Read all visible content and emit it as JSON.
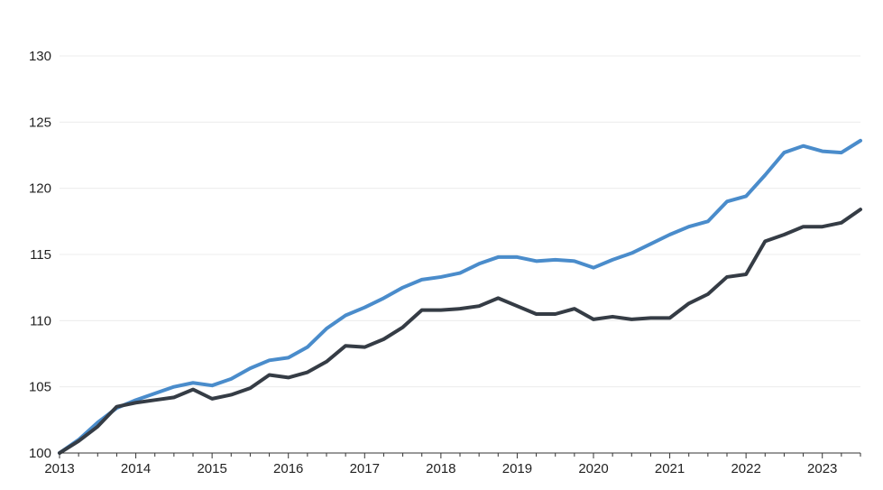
{
  "chart_data": {
    "type": "line",
    "title": "",
    "xlabel": "",
    "ylabel": "",
    "x_ticks": [
      "2013",
      "2014",
      "2015",
      "2016",
      "2017",
      "2018",
      "2019",
      "2020",
      "2021",
      "2022",
      "2023"
    ],
    "y_ticks": [
      100,
      105,
      110,
      115,
      120,
      125,
      130
    ],
    "xlim": [
      2013.0,
      2023.5
    ],
    "ylim": [
      100,
      130
    ],
    "grid": "horizontal",
    "legend": "none",
    "x": [
      2013.0,
      2013.25,
      2013.5,
      2013.75,
      2014.0,
      2014.25,
      2014.5,
      2014.75,
      2015.0,
      2015.25,
      2015.5,
      2015.75,
      2016.0,
      2016.25,
      2016.5,
      2016.75,
      2017.0,
      2017.25,
      2017.5,
      2017.75,
      2018.0,
      2018.25,
      2018.5,
      2018.75,
      2019.0,
      2019.25,
      2019.5,
      2019.75,
      2020.0,
      2020.25,
      2020.5,
      2020.75,
      2021.0,
      2021.25,
      2021.5,
      2021.75,
      2022.0,
      2022.25,
      2022.5,
      2022.75,
      2023.0,
      2023.25,
      2023.5
    ],
    "series": [
      {
        "color": "#4a8ccb",
        "values": [
          100.0,
          101.0,
          102.3,
          103.4,
          104.0,
          104.5,
          105.0,
          105.3,
          105.1,
          105.6,
          106.4,
          107.0,
          107.2,
          108.0,
          109.4,
          110.4,
          111.0,
          111.7,
          112.5,
          113.1,
          113.3,
          113.6,
          114.3,
          114.8,
          114.8,
          114.5,
          114.6,
          114.5,
          114.0,
          114.6,
          115.1,
          115.8,
          116.5,
          117.1,
          117.5,
          119.0,
          119.4,
          121.0,
          122.7,
          123.2,
          122.8,
          122.7,
          123.6
        ]
      },
      {
        "color": "#353c45",
        "values": [
          100.0,
          100.9,
          102.0,
          103.5,
          103.8,
          104.0,
          104.2,
          104.8,
          104.1,
          104.4,
          104.9,
          105.9,
          105.7,
          106.1,
          106.9,
          108.1,
          108.0,
          108.6,
          109.5,
          110.8,
          110.8,
          110.9,
          111.1,
          111.7,
          111.1,
          110.5,
          110.5,
          110.9,
          110.1,
          110.3,
          110.1,
          110.2,
          110.2,
          111.3,
          112.0,
          113.3,
          113.5,
          116.0,
          116.5,
          117.1,
          117.1,
          117.4,
          118.4
        ]
      }
    ]
  }
}
